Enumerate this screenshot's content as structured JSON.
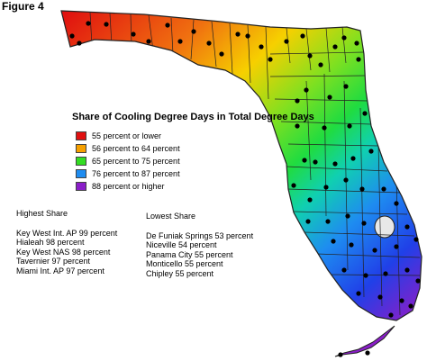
{
  "figure_label": "Figure 4",
  "legend": {
    "title": "Share of Cooling Degree Days in Total Degree Days",
    "items": [
      {
        "label": "55 percent or lower",
        "color": "#e01010"
      },
      {
        "label": "56 percent to 64 percent",
        "color": "#f6a000"
      },
      {
        "label": "65 percent to 75 percent",
        "color": "#33dd22"
      },
      {
        "label": "76 percent to 87 percent",
        "color": "#1e8cf0"
      },
      {
        "label": "88 percent or higher",
        "color": "#8a1ec8"
      }
    ]
  },
  "highest_share": {
    "heading": "Highest Share",
    "entries": [
      "Key West Int. AP 99 percent",
      "Hialeah 98 percent",
      "Key West NAS 98 percent",
      "Tavernier 97 percent",
      "Miami Int. AP 97 percent"
    ]
  },
  "lowest_share": {
    "heading": "Lowest Share",
    "entries": [
      "De Funiak Springs 53 percent",
      "Niceville 54 percent",
      "Panama City 55 percent",
      "Monticello 55 percent",
      "Chipley 55 percent"
    ]
  }
}
